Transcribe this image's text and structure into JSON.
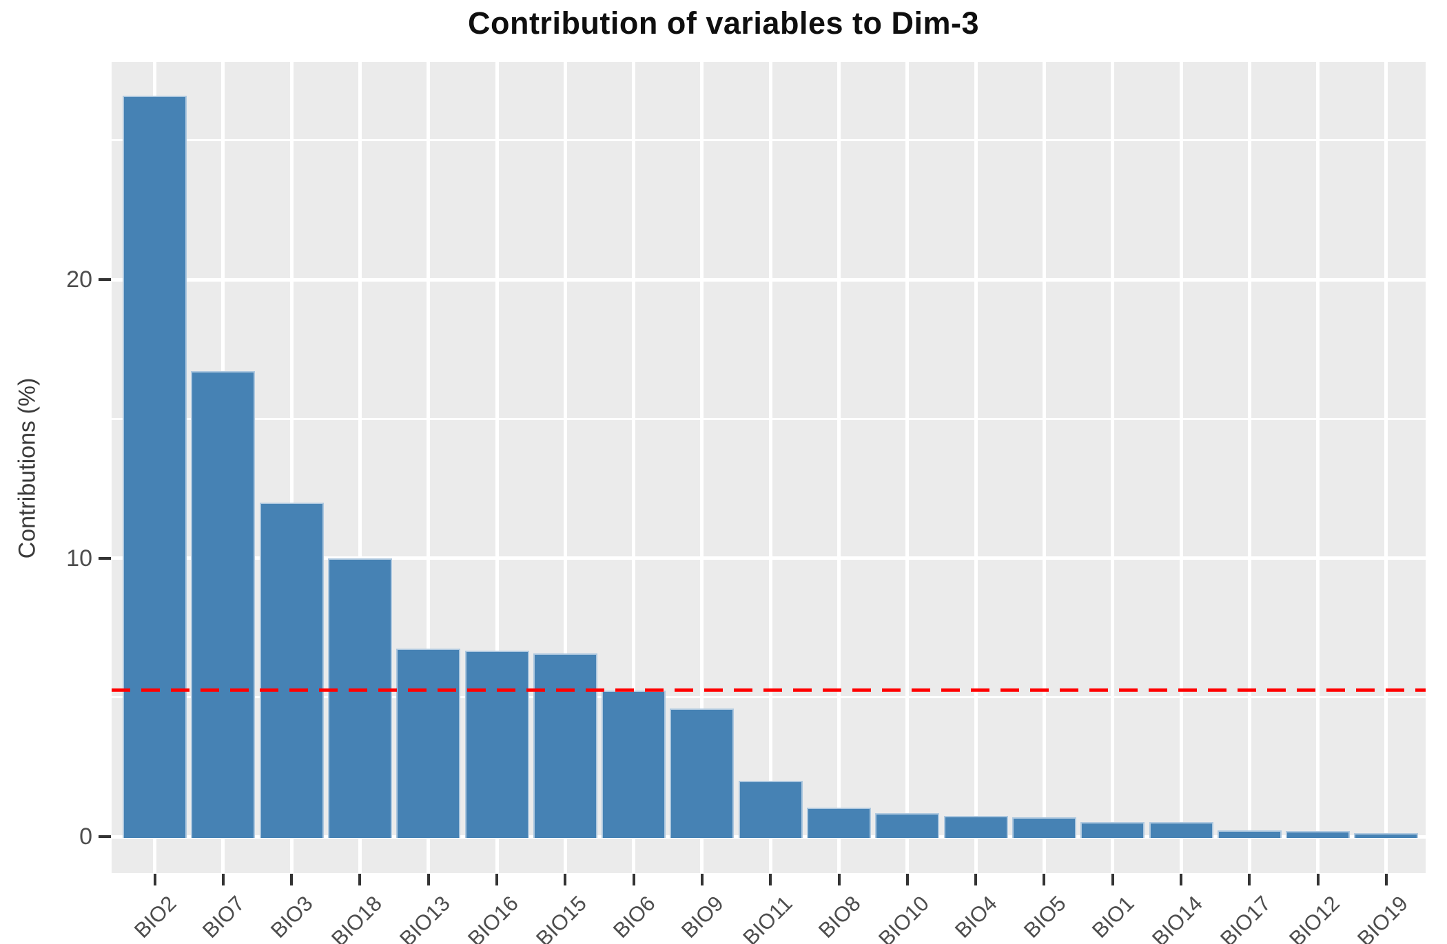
{
  "chart_data": {
    "type": "bar",
    "title": "Contribution of variables to Dim-3",
    "xlabel": "",
    "ylabel": "Contributions (%)",
    "categories": [
      "BIO2",
      "BIO7",
      "BIO3",
      "BIO18",
      "BIO13",
      "BIO16",
      "BIO15",
      "BIO6",
      "BIO9",
      "BIO11",
      "BIO8",
      "BIO10",
      "BIO4",
      "BIO5",
      "BIO1",
      "BIO14",
      "BIO17",
      "BIO12",
      "BIO19"
    ],
    "values": [
      26.6,
      16.7,
      12.0,
      10.0,
      6.75,
      6.68,
      6.58,
      5.24,
      4.6,
      2.0,
      1.05,
      0.84,
      0.74,
      0.68,
      0.52,
      0.52,
      0.22,
      0.21,
      0.12
    ],
    "y_ticks": [
      0,
      10,
      20
    ],
    "y_minor_ticks": [
      5,
      15,
      25
    ],
    "ylim": [
      0,
      27.8
    ],
    "reference_line": {
      "value": 5.26,
      "color": "#FF0000",
      "style": "dashed"
    },
    "legend": "none",
    "grid": true,
    "colors": {
      "bar_fill": "#4682B4",
      "bar_border": "#AEC8DF",
      "panel_background": "#EBEBEB",
      "gridline": "#FFFFFF",
      "axis_text": "#4D4D4D",
      "tick_mark": "#333333",
      "title_text": "#0F0F0F"
    }
  }
}
